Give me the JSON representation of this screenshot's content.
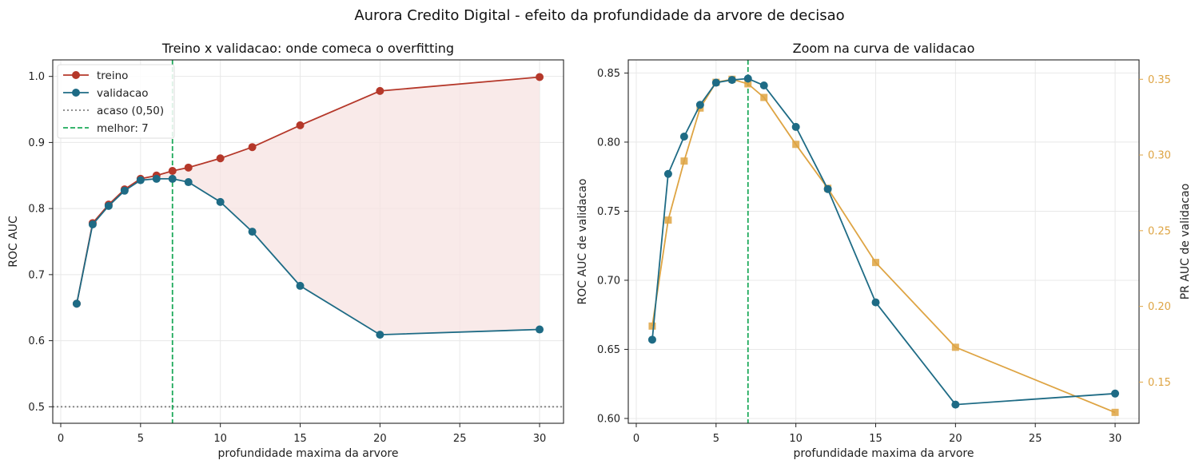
{
  "figure_title": "Aurora Credito Digital - efeito da profundidade da arvore de decisao",
  "colors": {
    "treino": "#b5382a",
    "validacao": "#1e6b85",
    "pr_auc": "#dea443",
    "acaso": "#808080",
    "melhor": "#1ca95a",
    "gap_fill": "#f7e3e1",
    "grid": "#e8e8e8"
  },
  "chart_data": [
    {
      "type": "line",
      "title": "Treino x validacao: onde comeca o overfitting",
      "xlabel": "profundidade maxima da arvore",
      "ylabel": "ROC AUC",
      "xlim": [
        -0.5,
        31.5
      ],
      "ylim": [
        0.475,
        1.025
      ],
      "xticks": [
        0,
        5,
        10,
        15,
        20,
        25,
        30
      ],
      "yticks": [
        0.5,
        0.6,
        0.7,
        0.8,
        0.9,
        1.0
      ],
      "ytick_labels": [
        "0.5",
        "0.6",
        "0.7",
        "0.8",
        "0.9",
        "1.0"
      ],
      "grid": true,
      "legend_position": "upper-left",
      "x": [
        1,
        2,
        3,
        4,
        5,
        6,
        7,
        8,
        10,
        12,
        15,
        20,
        30
      ],
      "series": [
        {
          "name": "treino",
          "values": [
            0.656,
            0.778,
            0.806,
            0.829,
            0.845,
            0.85,
            0.857,
            0.862,
            0.876,
            0.893,
            0.926,
            0.978,
            0.999
          ]
        },
        {
          "name": "validacao",
          "values": [
            0.656,
            0.776,
            0.804,
            0.827,
            0.843,
            0.845,
            0.845,
            0.84,
            0.81,
            0.765,
            0.683,
            0.609,
            0.617
          ]
        }
      ],
      "reference_lines": [
        {
          "name": "acaso (0,50)",
          "orientation": "horizontal",
          "value": 0.5
        },
        {
          "name": "melhor: 7",
          "orientation": "vertical",
          "value": 7
        }
      ],
      "shaded_gap": "between treino and validacao"
    },
    {
      "type": "line",
      "title": "Zoom na curva de validacao",
      "xlabel": "profundidade maxima da arvore",
      "ylabel": "ROC AUC de validacao",
      "y2label": "PR AUC de validacao",
      "xlim": [
        -0.5,
        31.5
      ],
      "ylim": [
        0.5965,
        0.8595
      ],
      "y2lim": [
        0.1228,
        0.3628
      ],
      "xticks": [
        0,
        5,
        10,
        15,
        20,
        25,
        30
      ],
      "yticks": [
        0.6,
        0.65,
        0.7,
        0.75,
        0.8,
        0.85
      ],
      "ytick_labels": [
        "0.60",
        "0.65",
        "0.70",
        "0.75",
        "0.80",
        "0.85"
      ],
      "y2ticks": [
        0.15,
        0.2,
        0.25,
        0.3,
        0.35
      ],
      "y2tick_labels": [
        "0.15",
        "0.20",
        "0.25",
        "0.30",
        "0.35"
      ],
      "grid": true,
      "x": [
        1,
        2,
        3,
        4,
        5,
        6,
        7,
        8,
        10,
        12,
        15,
        20,
        30
      ],
      "series": [
        {
          "axis": "left",
          "values": [
            0.657,
            0.777,
            0.804,
            0.827,
            0.843,
            0.845,
            0.846,
            0.841,
            0.811,
            0.766,
            0.684,
            0.61,
            0.618
          ]
        },
        {
          "axis": "right",
          "values": [
            0.187,
            0.257,
            0.296,
            0.331,
            0.348,
            0.35,
            0.347,
            0.338,
            0.307,
            0.278,
            0.229,
            0.173,
            0.13
          ]
        }
      ],
      "reference_lines": [
        {
          "orientation": "vertical",
          "value": 7
        }
      ]
    }
  ]
}
